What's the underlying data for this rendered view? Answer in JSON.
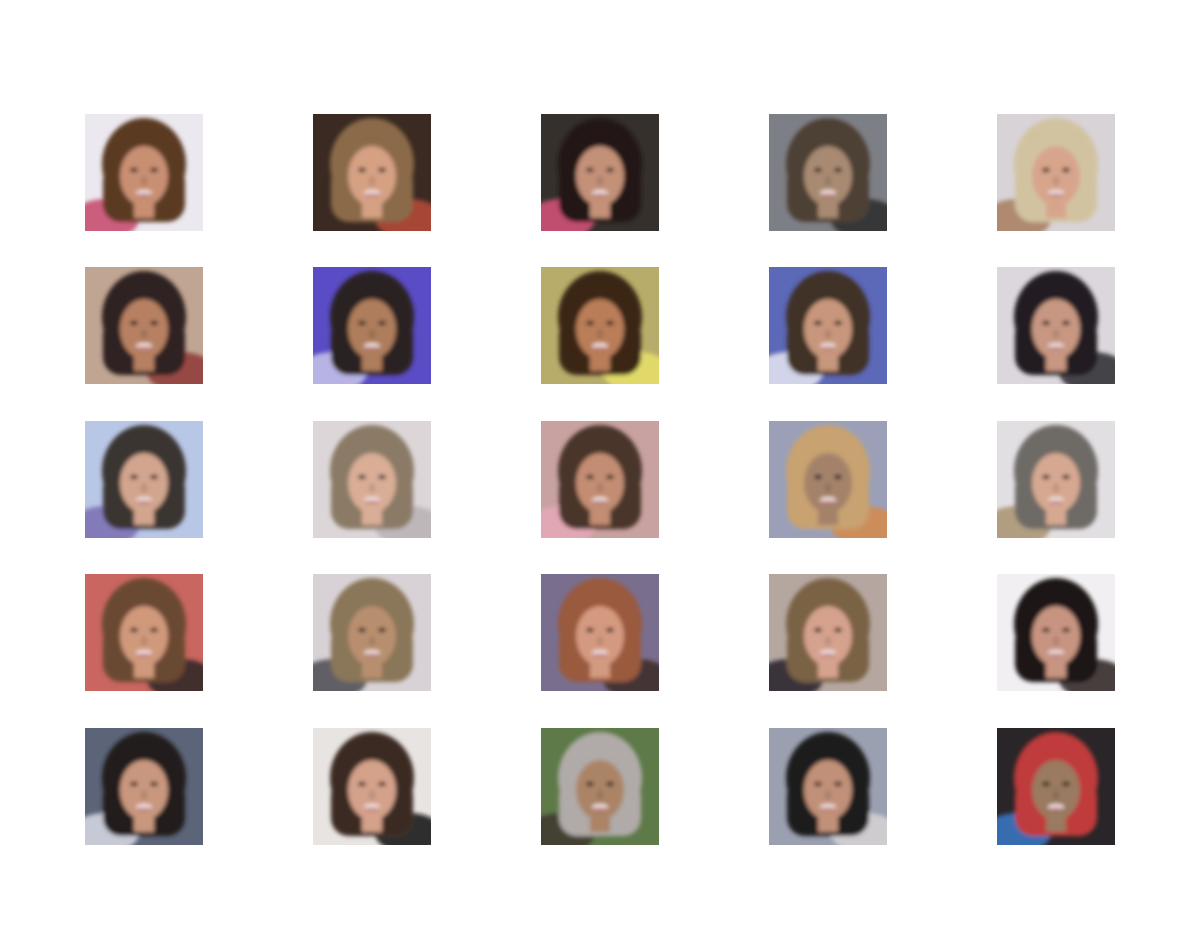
{
  "grid": {
    "rows": 5,
    "cols": 5,
    "tiles": [
      {
        "bg": "#ece8ef",
        "hair": "#5a3a24",
        "skin": "#c98f72",
        "accent": "#c5476a"
      },
      {
        "bg": "#3b2a22",
        "hair": "#8a6a4a",
        "skin": "#d6a083",
        "accent": "#b94a3a"
      },
      {
        "bg": "#35302b",
        "hair": "#221815",
        "skin": "#c39078",
        "accent": "#d8547a"
      },
      {
        "bg": "#7d7f86",
        "hair": "#4e4036",
        "skin": "#a88a72",
        "accent": "#2a2a2a"
      },
      {
        "bg": "#d8d3d7",
        "hair": "#d2c3a0",
        "skin": "#d7a58c",
        "accent": "#a87d5e"
      },
      {
        "bg": "#c0a592",
        "hair": "#2f2420",
        "skin": "#b78062",
        "accent": "#8e3b36"
      },
      {
        "bg": "#5a4cc4",
        "hair": "#2a2320",
        "skin": "#ad7d5c",
        "accent": "#c8c5ea"
      },
      {
        "bg": "#b8ac6a",
        "hair": "#3a2519",
        "skin": "#b97d58",
        "accent": "#e8e26a"
      },
      {
        "bg": "#5c68b8",
        "hair": "#3f3028",
        "skin": "#c7967c",
        "accent": "#e6e8f2"
      },
      {
        "bg": "#dcd7dc",
        "hair": "#201d20",
        "skin": "#c79782",
        "accent": "#2b2a30"
      },
      {
        "bg": "#b9c7e6",
        "hair": "#3a3532",
        "skin": "#d2a58e",
        "accent": "#7a6eb0"
      },
      {
        "bg": "#dcd6d8",
        "hair": "#8a7a66",
        "skin": "#d9ad96",
        "accent": "#b8b2b4"
      },
      {
        "bg": "#c8a2a0",
        "hair": "#4a342a",
        "skin": "#c28d72",
        "accent": "#e6a8b8"
      },
      {
        "bg": "#9ba0b8",
        "hair": "#c8a270",
        "skin": "#a4826a",
        "accent": "#d58a4a"
      },
      {
        "bg": "#e2dfe3",
        "hair": "#6e6a66",
        "skin": "#d6a891",
        "accent": "#a89370"
      },
      {
        "bg": "#c8665f",
        "hair": "#6b4a32",
        "skin": "#d0997c",
        "accent": "#2a2424"
      },
      {
        "bg": "#d8d2d6",
        "hair": "#8a7658",
        "skin": "#b88f6e",
        "accent": "#4a4a52"
      },
      {
        "bg": "#7a6e8e",
        "hair": "#9a5a3e",
        "skin": "#d49a80",
        "accent": "#3a2a26"
      },
      {
        "bg": "#b5a7a0",
        "hair": "#7a6244",
        "skin": "#d5a28e",
        "accent": "#24222a"
      },
      {
        "bg": "#f1eff1",
        "hair": "#1d1818",
        "skin": "#c79481",
        "accent": "#2a2222"
      },
      {
        "bg": "#5b6478",
        "hair": "#221b1a",
        "skin": "#c9977e",
        "accent": "#d9dbe6"
      },
      {
        "bg": "#e8e4e2",
        "hair": "#3a2a24",
        "skin": "#d4a18a",
        "accent": "#0d0b0c"
      },
      {
        "bg": "#5d7a48",
        "hair": "#b0aaa8",
        "skin": "#ab8466",
        "accent": "#3e3630"
      },
      {
        "bg": "#9aa0b0",
        "hair": "#1e1a1a",
        "skin": "#c19078",
        "accent": "#d8d4d6"
      },
      {
        "bg": "#2a2528",
        "hair": "#c03a3a",
        "skin": "#9a7a60",
        "accent": "#3a78c8"
      }
    ]
  }
}
